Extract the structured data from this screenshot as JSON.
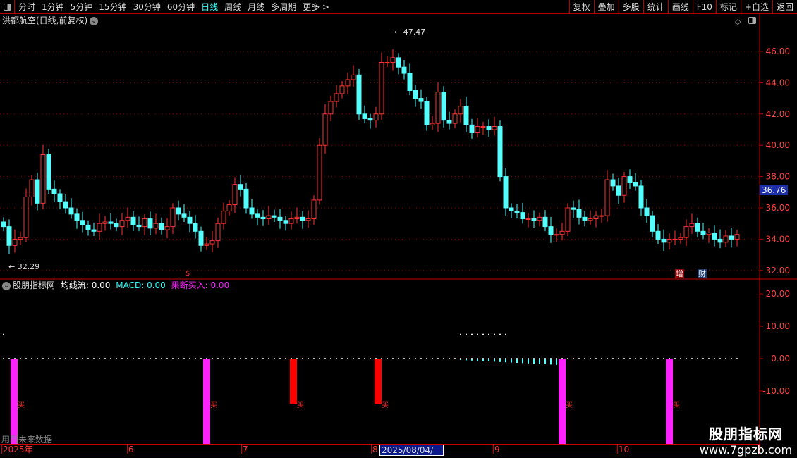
{
  "toolbar": {
    "periods": [
      "分时",
      "1分钟",
      "5分钟",
      "15分钟",
      "30分钟",
      "60分钟",
      "日线",
      "周线",
      "月线",
      "多周期",
      "更多 >"
    ],
    "active": "日线",
    "right_buttons": [
      "复权",
      "叠加",
      "多股",
      "统计",
      "画线",
      "F10",
      "标记",
      "+自选",
      "返回"
    ]
  },
  "title": "洪都航空(日线,前复权)",
  "indicator": {
    "name": "股朋指标网",
    "line1": "均线流: 0.00",
    "line2": "MACD: 0.00",
    "line3": "果断买入: 0.00"
  },
  "future_note": "用到未来数据",
  "tags": {
    "zeng": "增",
    "cai": "财"
  },
  "buy_mark": "买",
  "colors": {
    "up": "#ff3333",
    "down": "#54ffff",
    "magenta": "#ff22ff",
    "grid": "#8b0000",
    "axis": "#c00000",
    "price_box": "#1a2fa8"
  },
  "chart_data": [
    {
      "type": "candlestick",
      "ylim": [
        31.5,
        47.8
      ],
      "yticks": [
        "46.00",
        "44.00",
        "42.00",
        "40.00",
        "38.00",
        "36.00",
        "34.00",
        "32.00"
      ],
      "closes": [
        34.8,
        33.6,
        34.0,
        34.1,
        36.7,
        37.8,
        36.3,
        39.4,
        37.2,
        36.9,
        36.4,
        36.0,
        35.6,
        35.2,
        34.9,
        34.6,
        34.5,
        35.0,
        35.1,
        35.0,
        34.8,
        35.2,
        35.4,
        34.9,
        34.8,
        35.3,
        34.7,
        35.0,
        34.6,
        34.8,
        36.0,
        35.6,
        35.4,
        35.0,
        34.5,
        33.6,
        33.7,
        33.9,
        35.0,
        35.8,
        36.2,
        37.5,
        37.2,
        36.0,
        35.6,
        35.4,
        35.3,
        35.5,
        35.4,
        35.2,
        35.0,
        35.3,
        35.4,
        35.2,
        35.3,
        36.5,
        40.0,
        42.0,
        42.8,
        43.3,
        43.8,
        44.2,
        44.5,
        42.0,
        41.7,
        41.6,
        42.0,
        45.3,
        45.3,
        45.6,
        45.0,
        44.6,
        43.5,
        43.0,
        42.8,
        41.3,
        41.4,
        43.4,
        41.6,
        41.4,
        42.0,
        42.5,
        41.3,
        40.8,
        41.2,
        41.2,
        41.0,
        41.2,
        38.0,
        36.0,
        35.8,
        35.7,
        35.3,
        35.3,
        35.2,
        35.4,
        34.8,
        34.3,
        34.3,
        34.5,
        36.0,
        35.9,
        35.4,
        35.2,
        35.3,
        35.5,
        35.5,
        37.8,
        37.4,
        36.8,
        38.0,
        37.6,
        37.4,
        36.0,
        35.5,
        34.5,
        34.0,
        33.8,
        34.0,
        34.0,
        34.1,
        34.8,
        35.0,
        34.5,
        34.3,
        34.4,
        34.0,
        33.8,
        34.2,
        34.0,
        34.3
      ],
      "high_label": "47.47",
      "low_label": "32.29",
      "last_price": "36.76",
      "xticks": [
        "2025年",
        "6",
        "7",
        "8",
        "9",
        "10"
      ],
      "cursor_date": "2025/08/04/一"
    },
    {
      "type": "bar",
      "ylim": [
        -26,
        25
      ],
      "yticks": [
        "20.00",
        "10.00",
        "0.00",
        "-10.00"
      ],
      "magenta_bars_at_index": [
        2,
        36,
        99,
        118
      ],
      "red_bars_at_index": [
        51,
        66
      ],
      "red_bar_value": -14
    }
  ]
}
